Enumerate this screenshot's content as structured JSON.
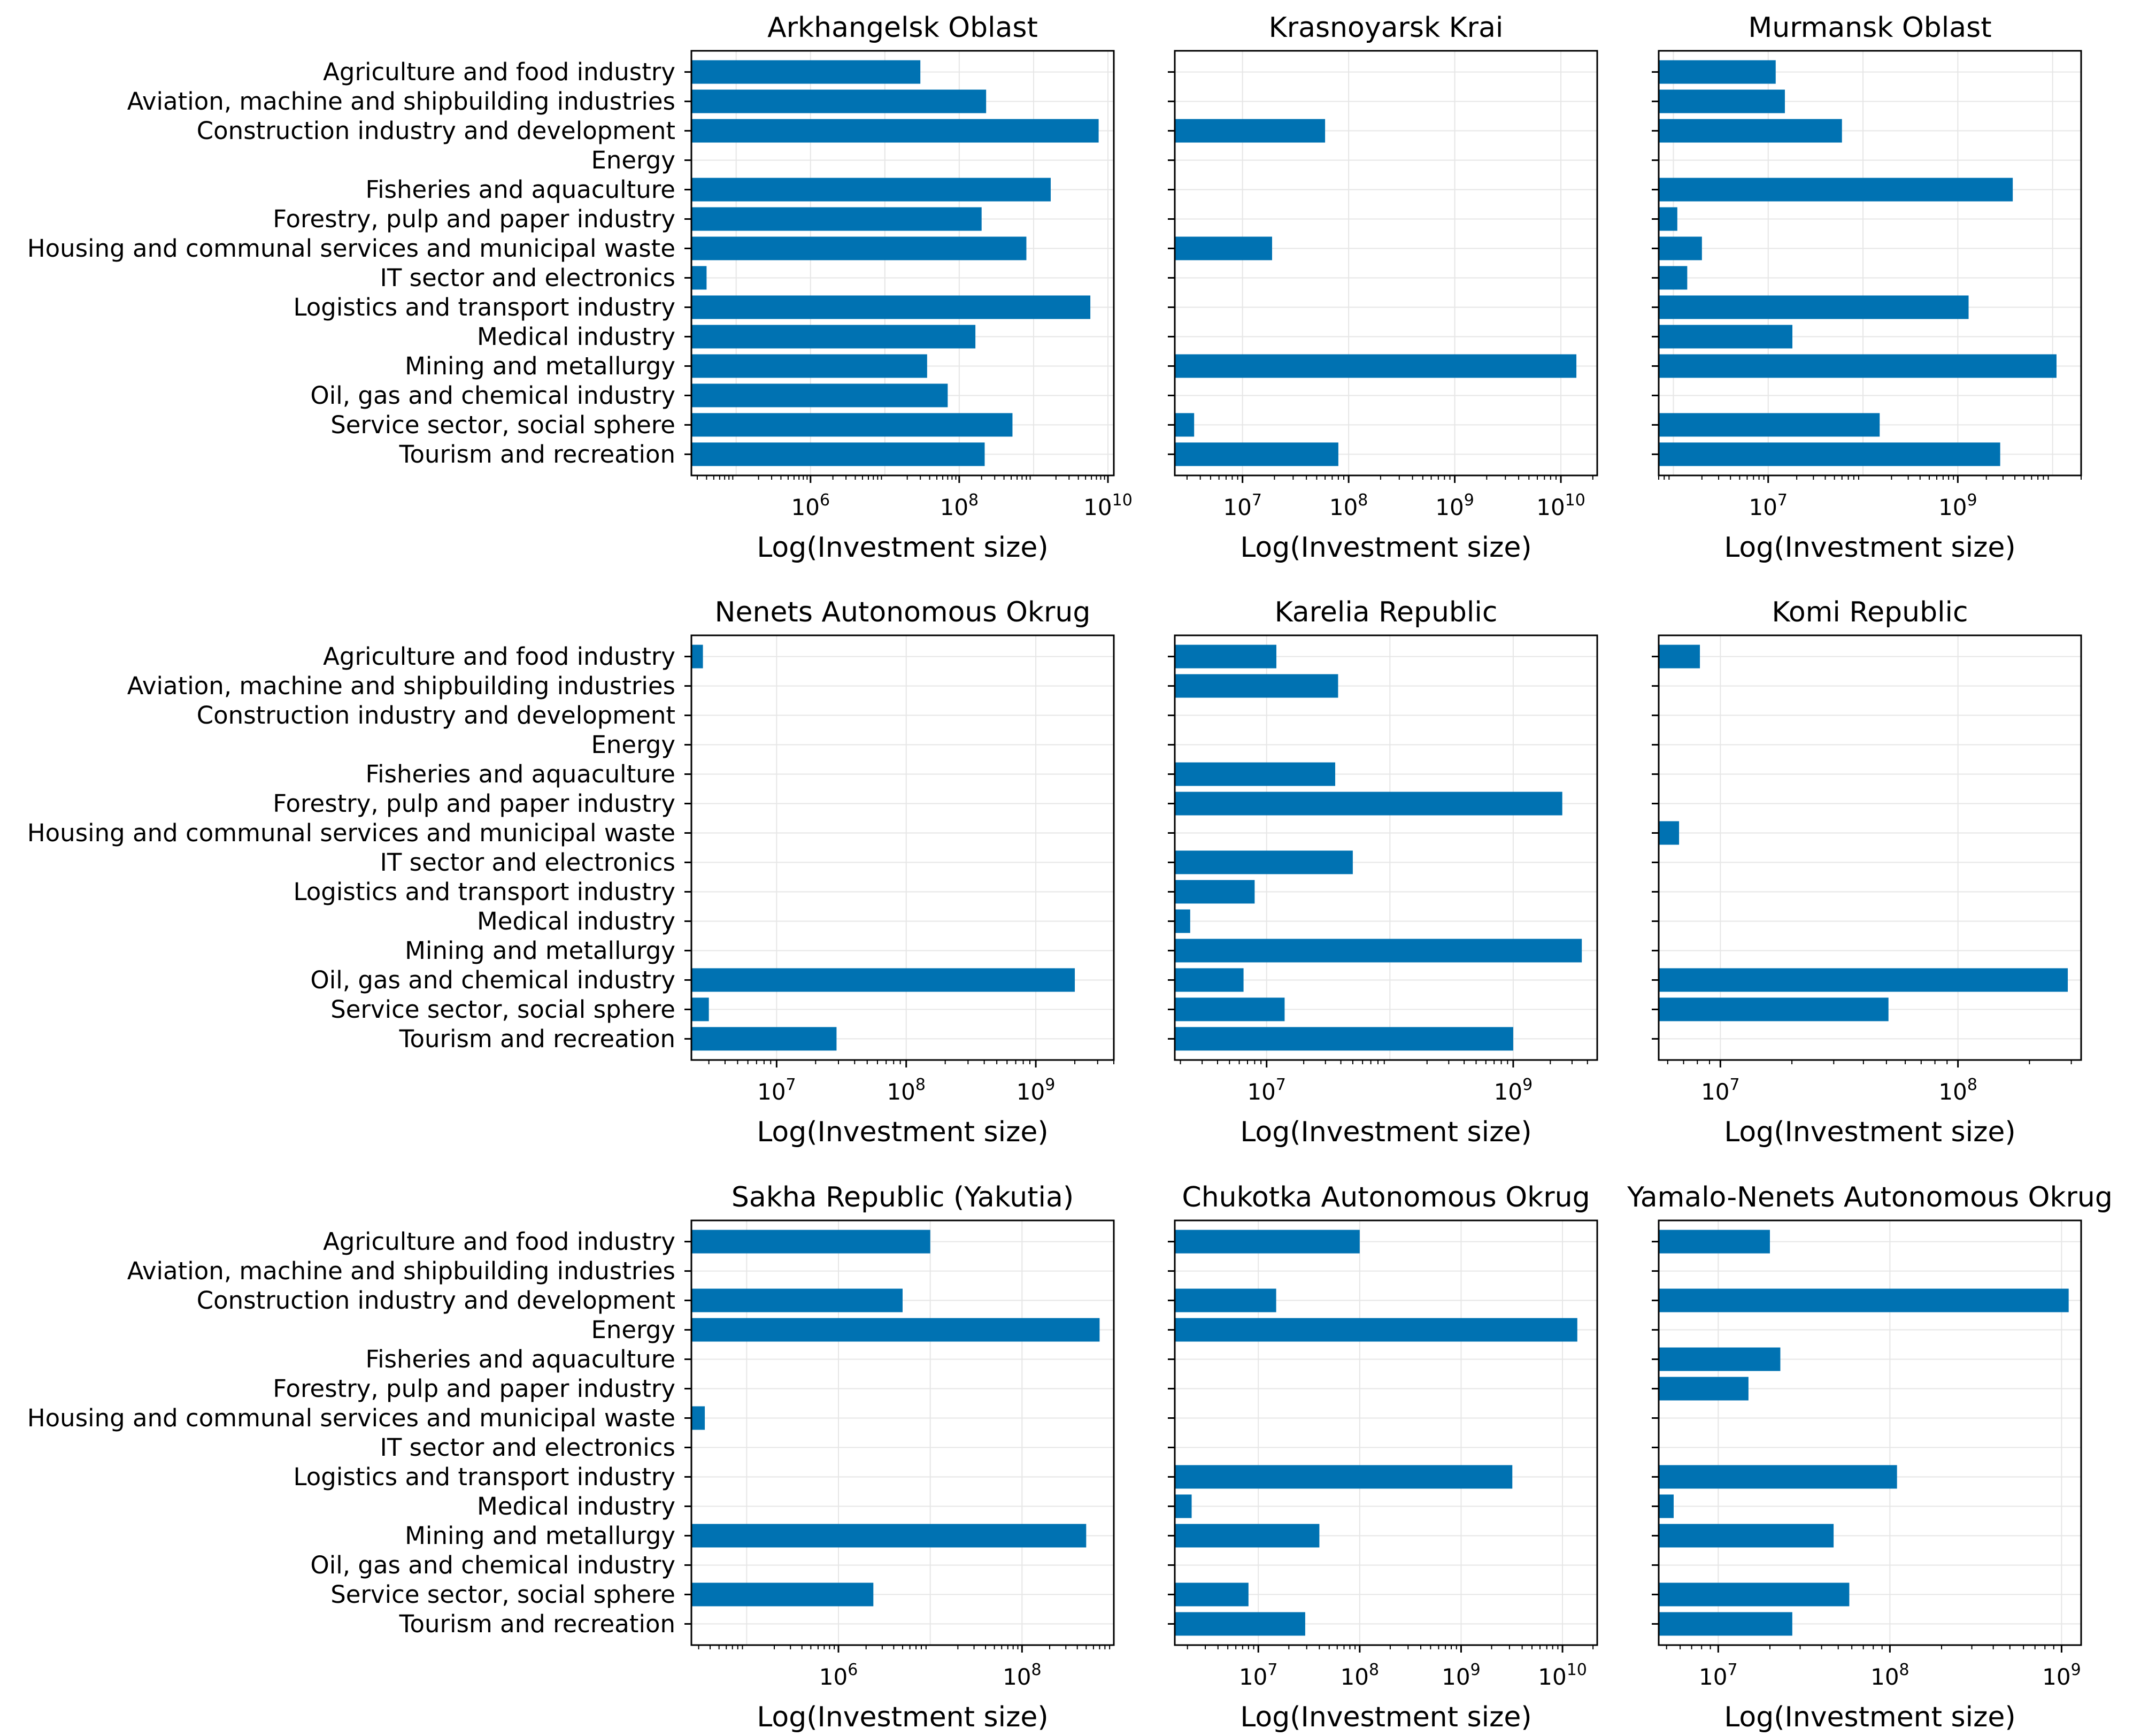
{
  "colors": {
    "bar": "#0072B2",
    "grid": "#e6e6e6",
    "frame": "#000000",
    "text": "#000000"
  },
  "categories": [
    "Agriculture and food industry",
    "Aviation, machine and shipbuilding industries",
    "Construction industry and development",
    "Energy",
    "Fisheries and aquaculture",
    "Forestry, pulp and paper industry",
    "Housing and communal services and municipal waste",
    "IT sector and electronics",
    "Logistics and transport industry",
    "Medical industry",
    "Mining and metallurgy",
    "Oil, gas and chemical industry",
    "Service sector, social sphere",
    "Tourism and recreation"
  ],
  "chart_data": [
    {
      "type": "bar",
      "orientation": "horizontal",
      "title": "Arkhangelsk Oblast",
      "xlabel": "Log(Investment size)",
      "xscale": "log",
      "xlim": [
        25000,
        12000000000
      ],
      "xticks": [
        6,
        8,
        10
      ],
      "values": [
        30000000,
        230000000,
        7500000000,
        null,
        1700000000,
        200000000,
        800000000,
        40000,
        5800000000,
        165000000,
        37000000,
        70000000,
        520000000,
        220000000
      ]
    },
    {
      "type": "bar",
      "orientation": "horizontal",
      "title": "Krasnoyarsk Krai",
      "xlabel": "Log(Investment size)",
      "xscale": "log",
      "xlim": [
        2300000,
        22000000000
      ],
      "xticks": [
        7,
        8,
        9,
        10
      ],
      "values": [
        null,
        null,
        60000000,
        null,
        null,
        null,
        19000000,
        null,
        null,
        null,
        14000000000,
        null,
        3500000,
        80000000
      ]
    },
    {
      "type": "bar",
      "orientation": "horizontal",
      "title": "Murmansk Oblast",
      "xlabel": "Log(Investment size)",
      "xscale": "log",
      "xlim": [
        700000,
        20000000000
      ],
      "xticks": [
        7,
        9
      ],
      "values": [
        12000000,
        15000000,
        60000000,
        null,
        3800000000,
        1100000,
        2000000,
        1400000,
        1300000000,
        18000000,
        11000000000,
        null,
        150000000,
        2800000000
      ]
    },
    {
      "type": "bar",
      "orientation": "horizontal",
      "title": "Nenets Autonomous Okrug",
      "xlabel": "Log(Investment size)",
      "xscale": "log",
      "xlim": [
        2200000,
        4000000000
      ],
      "xticks": [
        7,
        8,
        9
      ],
      "values": [
        2700000,
        null,
        null,
        null,
        null,
        null,
        null,
        null,
        null,
        null,
        null,
        2000000000,
        3000000,
        29000000
      ]
    },
    {
      "type": "bar",
      "orientation": "horizontal",
      "title": "Karelia Republic",
      "xlabel": "Log(Investment size)",
      "xscale": "log",
      "xlim": [
        1800000,
        4800000000
      ],
      "xticks": [
        7,
        9
      ],
      "values": [
        12000000,
        38000000,
        null,
        null,
        36000000,
        2500000000,
        null,
        50000000,
        8000000,
        2400000,
        3600000000,
        6500000,
        14000000,
        1000000000
      ]
    },
    {
      "type": "bar",
      "orientation": "horizontal",
      "title": "Komi Republic",
      "xlabel": "Log(Investment size)",
      "xscale": "log",
      "xlim": [
        5500000,
        330000000
      ],
      "xticks": [
        7,
        8
      ],
      "values": [
        8200000,
        null,
        null,
        null,
        null,
        null,
        6700000,
        null,
        null,
        null,
        null,
        290000000,
        51000000,
        null
      ]
    },
    {
      "type": "bar",
      "orientation": "horizontal",
      "title": "Sakha Republic (Yakutia)",
      "xlabel": "Log(Investment size)",
      "xscale": "log",
      "xlim": [
        25000,
        1000000000
      ],
      "xticks": [
        6,
        8
      ],
      "values": [
        10000000,
        null,
        5000000,
        700000000,
        null,
        null,
        35000,
        null,
        null,
        null,
        500000000,
        null,
        2400000,
        null
      ]
    },
    {
      "type": "bar",
      "orientation": "horizontal",
      "title": "Chukotka Autonomous Okrug",
      "xlabel": "Log(Investment size)",
      "xscale": "log",
      "xlim": [
        1500000,
        22000000000
      ],
      "xticks": [
        7,
        8,
        9,
        10
      ],
      "values": [
        100000000,
        null,
        15000000,
        14000000000,
        null,
        null,
        null,
        null,
        3200000000,
        2200000,
        40000000,
        null,
        8000000,
        29000000
      ]
    },
    {
      "type": "bar",
      "orientation": "horizontal",
      "title": "Yamalo-Nenets Autonomous Okrug",
      "xlabel": "Log(Investment size)",
      "xscale": "log",
      "xlim": [
        4500000,
        1300000000
      ],
      "xticks": [
        7,
        8,
        9
      ],
      "values": [
        20000000,
        null,
        1100000000,
        null,
        23000000,
        15000000,
        null,
        null,
        110000000,
        5500000,
        47000000,
        null,
        58000000,
        27000000
      ]
    }
  ]
}
